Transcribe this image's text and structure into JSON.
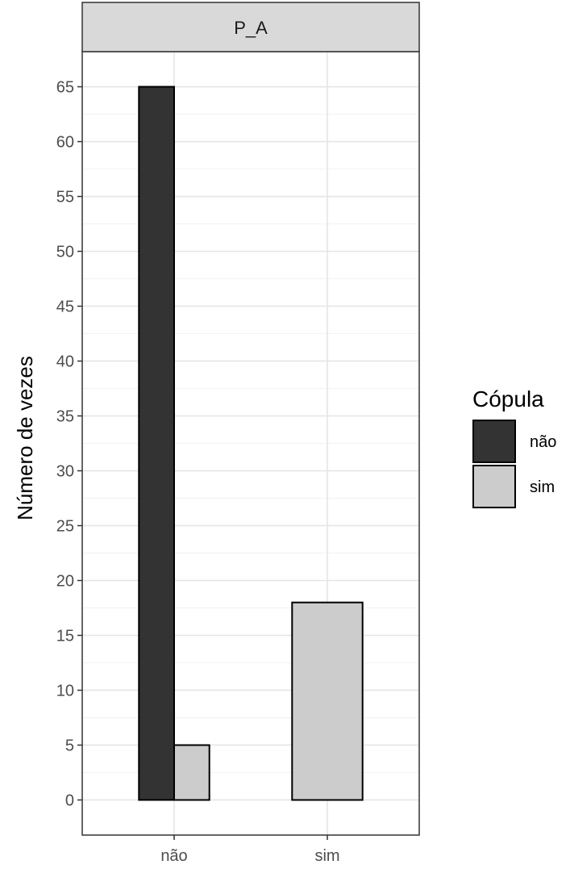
{
  "chart_data": {
    "type": "bar",
    "facet_label": "P_A",
    "categories": [
      "não",
      "sim"
    ],
    "series": [
      {
        "name": "não",
        "color": "#333333",
        "values": [
          65,
          0
        ]
      },
      {
        "name": "sim",
        "color": "#cccccc",
        "values": [
          5,
          18
        ]
      }
    ],
    "xlabel": "",
    "ylabel": "Número de vezes",
    "ylim": [
      -3.2,
      68.2
    ],
    "yticks": [
      0,
      5,
      10,
      15,
      20,
      25,
      30,
      35,
      40,
      45,
      50,
      55,
      60,
      65
    ],
    "grid": true,
    "legend": {
      "title": "Cópula",
      "placement": "right",
      "entries": [
        "não",
        "sim"
      ]
    }
  }
}
